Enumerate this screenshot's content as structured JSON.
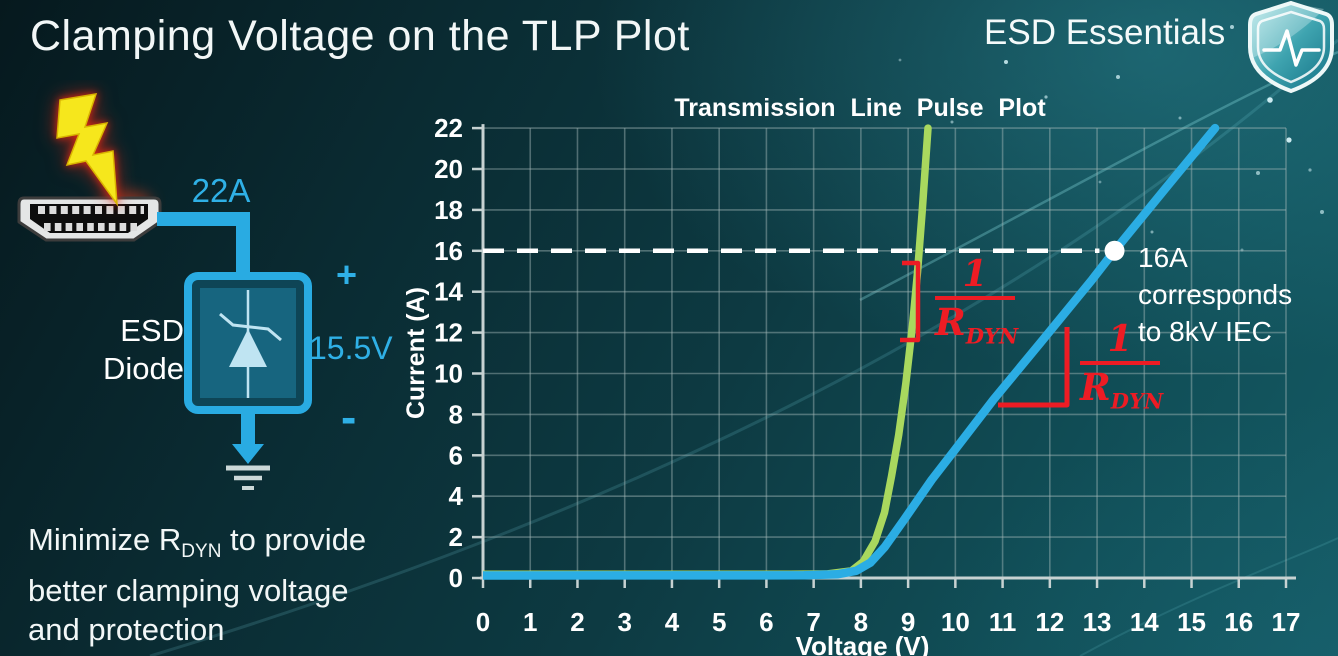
{
  "slide": {
    "title": "Clamping Voltage on the TLP Plot",
    "brand": {
      "name": "ESD Essentials",
      "icon": "shield-pulse-icon"
    },
    "footer_note": {
      "line1_pre": "Minimize R",
      "line1_sub": "DYN",
      "line1_post": " to provide",
      "line2": "better clamping voltage",
      "line3": "and protection"
    }
  },
  "diagram": {
    "surge_current_label": "22A",
    "device_label_line1": "ESD",
    "device_label_line2": "Diode",
    "plus_label": "+",
    "clamp_voltage_label": "15.5V",
    "minus_label": "-",
    "wire_color": "#29abe2",
    "bolt_color": "#f6e71c",
    "icons": [
      "lightning-bolt-icon",
      "hdmi-connector-icon",
      "tvs-diode-symbol",
      "ground-icon"
    ]
  },
  "chart_data": {
    "type": "line",
    "title": "Transmission Line Pulse Plot",
    "xlabel": "Voltage (V)",
    "ylabel": "Current (A)",
    "xlim": [
      0,
      17
    ],
    "ylim": [
      0,
      22
    ],
    "grid": true,
    "x_ticks": [
      0,
      1,
      2,
      3,
      4,
      5,
      6,
      7,
      8,
      9,
      10,
      11,
      12,
      13,
      14,
      15,
      16,
      17
    ],
    "y_ticks": [
      0,
      2,
      4,
      6,
      8,
      10,
      12,
      14,
      16,
      18,
      20,
      22
    ],
    "series": [
      {
        "name": "low_rdyn_diode_green",
        "color": "#a9d85e",
        "points": [
          [
            0,
            0.18
          ],
          [
            6.5,
            0.18
          ],
          [
            7.3,
            0.2
          ],
          [
            7.8,
            0.35
          ],
          [
            8.05,
            0.8
          ],
          [
            8.3,
            1.8
          ],
          [
            8.5,
            3.2
          ],
          [
            8.65,
            5
          ],
          [
            8.8,
            7
          ],
          [
            8.95,
            9.5
          ],
          [
            9.1,
            12.5
          ],
          [
            9.2,
            15
          ],
          [
            9.3,
            18
          ],
          [
            9.42,
            22
          ]
        ]
      },
      {
        "name": "high_rdyn_diode_blue",
        "color": "#2bade4",
        "points": [
          [
            0,
            0.12
          ],
          [
            6.8,
            0.13
          ],
          [
            7.5,
            0.18
          ],
          [
            7.9,
            0.35
          ],
          [
            8.2,
            0.75
          ],
          [
            8.5,
            1.5
          ],
          [
            8.9,
            2.8
          ],
          [
            9.5,
            4.8
          ],
          [
            10,
            6.3
          ],
          [
            10.8,
            8.7
          ],
          [
            11.8,
            11.5
          ],
          [
            12.9,
            14.6
          ],
          [
            13.37,
            16
          ],
          [
            14.5,
            19.2
          ],
          [
            15.5,
            22
          ]
        ]
      }
    ],
    "reference_line": {
      "y": 16,
      "style": "dashed",
      "color": "#ffffff",
      "x_start": 0,
      "x_end": 13.05
    },
    "marker": {
      "x": 13.37,
      "y": 16,
      "color": "#ffffff"
    },
    "annotations": {
      "marker_text_line1": "16A corresponds",
      "marker_text_line2": "to 8kV IEC",
      "slope_fraction": {
        "numerator": "1",
        "denominator_symbol": "R",
        "denominator_sub": "DYN"
      },
      "annotation_color": "#ed1c24"
    }
  },
  "colors": {
    "background_teal": "#0d3a42",
    "accent_cyan": "#29abe2",
    "curve_green": "#a9d85e",
    "curve_blue": "#2bade4",
    "annotation_red": "#ed1c24",
    "text_white": "#f2f7f7"
  }
}
